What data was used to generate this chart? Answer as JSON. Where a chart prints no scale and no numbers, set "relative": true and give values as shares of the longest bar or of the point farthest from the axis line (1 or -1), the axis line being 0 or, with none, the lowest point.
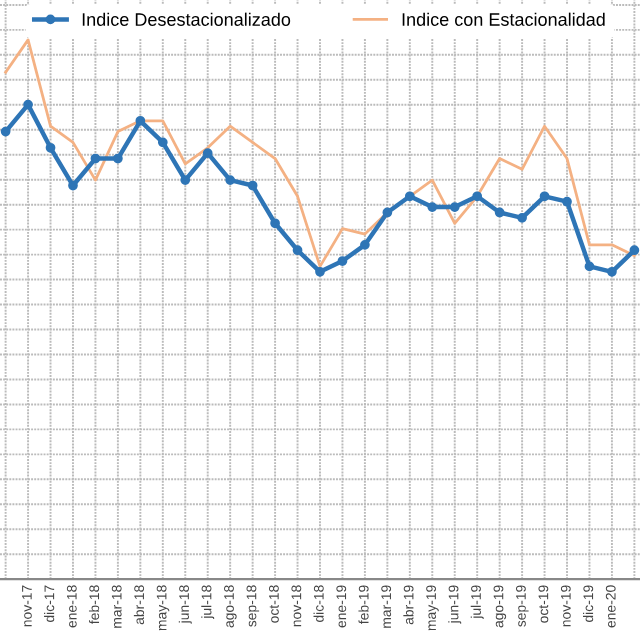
{
  "chart_data": {
    "type": "line",
    "relative": true,
    "grid": true,
    "legend": "top",
    "tick_labels": "x",
    "categories": [
      null,
      "nov-17",
      "dic-17",
      "ene-18",
      "feb-18",
      "mar-18",
      "abr-18",
      "may-18",
      "jun-18",
      "jul-18",
      "ago-18",
      "sep-18",
      "oct-18",
      "nov-18",
      "dic-18",
      "ene-19",
      "feb-19",
      "mar-19",
      "abr-19",
      "may-19",
      "jun-19",
      "jul-19",
      "ago-19",
      "sep-19",
      "oct-19",
      "nov-19",
      "dic-19",
      "ene-20",
      null
    ],
    "series": [
      {
        "name": "Indice Desestacionalizado",
        "color": "#2e75b6",
        "marker": "circle",
        "values": [
          0.83,
          0.88,
          0.8,
          0.73,
          0.78,
          0.78,
          0.85,
          0.81,
          0.74,
          0.79,
          0.74,
          0.73,
          0.66,
          0.61,
          0.57,
          0.59,
          0.62,
          0.68,
          0.71,
          0.69,
          0.69,
          0.71,
          0.68,
          0.67,
          0.71,
          0.7,
          0.58,
          0.57,
          0.61
        ]
      },
      {
        "name": "Indice con Estacionalidad",
        "color": "#f4b183",
        "marker": "none",
        "values": [
          0.94,
          1.0,
          0.84,
          0.81,
          0.74,
          0.83,
          0.85,
          0.85,
          0.77,
          0.8,
          0.84,
          0.81,
          0.78,
          0.71,
          0.58,
          0.65,
          0.64,
          0.68,
          0.71,
          0.74,
          0.66,
          0.71,
          0.78,
          0.76,
          0.84,
          0.78,
          0.62,
          0.62,
          0.6
        ]
      }
    ]
  }
}
